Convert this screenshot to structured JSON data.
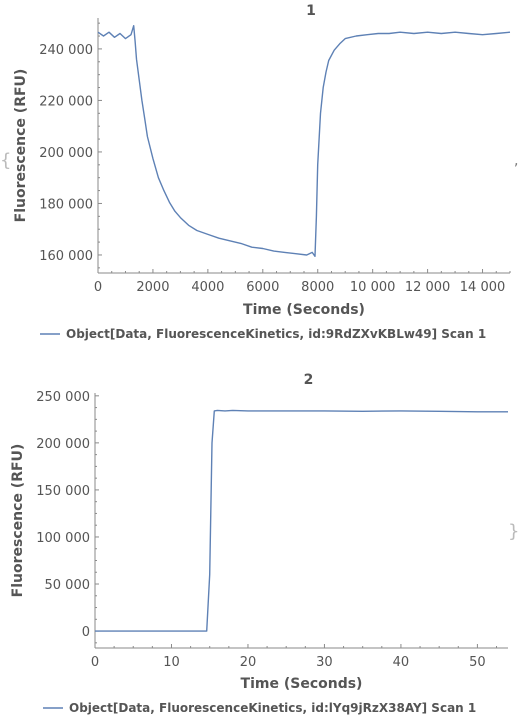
{
  "colors": {
    "series": "#5e81b5",
    "axis": "#8a8a8a",
    "text": "#555555"
  },
  "decor": {
    "left_bracket": "{",
    "right_bracket": "}",
    "comma": ","
  },
  "chart_data": [
    {
      "type": "line",
      "title": "1",
      "xlabel": "Time  (Seconds)",
      "ylabel": "Fluorescence  (RFU)",
      "xlim": [
        0,
        15000
      ],
      "ylim": [
        153000,
        252000
      ],
      "xticks": [
        0,
        2000,
        4000,
        6000,
        8000,
        10000,
        12000,
        14000
      ],
      "xtick_labels": [
        "0",
        "2000",
        "4000",
        "6000",
        "8000",
        "10 000",
        "12 000",
        "14 000"
      ],
      "yticks": [
        160000,
        180000,
        200000,
        220000,
        240000
      ],
      "ytick_labels": [
        "160 000",
        "180 000",
        "200 000",
        "220 000",
        "240 000"
      ],
      "legend_position": "bottom",
      "series": [
        {
          "name": "Object[Data, FluorescenceKinetics, id:9RdZXvKBLw49] Scan 1",
          "x": [
            0,
            200,
            400,
            600,
            800,
            1000,
            1200,
            1300,
            1350,
            1400,
            1500,
            1600,
            1700,
            1800,
            2000,
            2200,
            2400,
            2600,
            2800,
            3000,
            3300,
            3600,
            4000,
            4400,
            4800,
            5200,
            5600,
            6000,
            6400,
            6800,
            7200,
            7600,
            7800,
            7900,
            7950,
            8000,
            8100,
            8200,
            8300,
            8400,
            8600,
            8800,
            9000,
            9400,
            9800,
            10200,
            10600,
            11000,
            11500,
            12000,
            12500,
            13000,
            13500,
            14000,
            14500,
            15000
          ],
          "y": [
            246500,
            245000,
            246500,
            244500,
            246000,
            244000,
            245500,
            249000,
            243000,
            236000,
            228000,
            220000,
            213000,
            206000,
            197500,
            190000,
            185000,
            180500,
            177000,
            174500,
            171500,
            169500,
            168000,
            166500,
            165500,
            164500,
            163000,
            162500,
            161500,
            161000,
            160500,
            160000,
            161000,
            159500,
            175000,
            195000,
            215000,
            225000,
            231000,
            235500,
            239500,
            242000,
            244000,
            245000,
            245500,
            246000,
            246000,
            246500,
            246000,
            246500,
            246000,
            246500,
            246000,
            245500,
            246000,
            246500
          ]
        }
      ]
    },
    {
      "type": "line",
      "title": "2",
      "xlabel": "Time  (Seconds)",
      "ylabel": "Fluorescence  (RFU)",
      "xlim": [
        0,
        54
      ],
      "ylim": [
        -18000,
        253000
      ],
      "xticks": [
        0,
        10,
        20,
        30,
        40,
        50
      ],
      "xtick_labels": [
        "0",
        "10",
        "20",
        "30",
        "40",
        "50"
      ],
      "yticks": [
        0,
        50000,
        100000,
        150000,
        200000,
        250000
      ],
      "ytick_labels": [
        "0",
        "50 000",
        "100 000",
        "150 000",
        "200 000",
        "250 000"
      ],
      "legend_position": "bottom",
      "series": [
        {
          "name": "Object[Data, FluorescenceKinetics, id:lYq9jRzX38AY] Scan 1",
          "x": [
            0,
            5,
            10,
            14.6,
            15.0,
            15.3,
            15.6,
            16,
            17,
            18,
            20,
            25,
            30,
            35,
            40,
            45,
            50,
            54
          ],
          "y": [
            0,
            0,
            0,
            0,
            60000,
            200000,
            234000,
            234500,
            234000,
            234500,
            234000,
            234000,
            234000,
            233500,
            234000,
            233500,
            233000,
            233000
          ]
        }
      ]
    }
  ]
}
